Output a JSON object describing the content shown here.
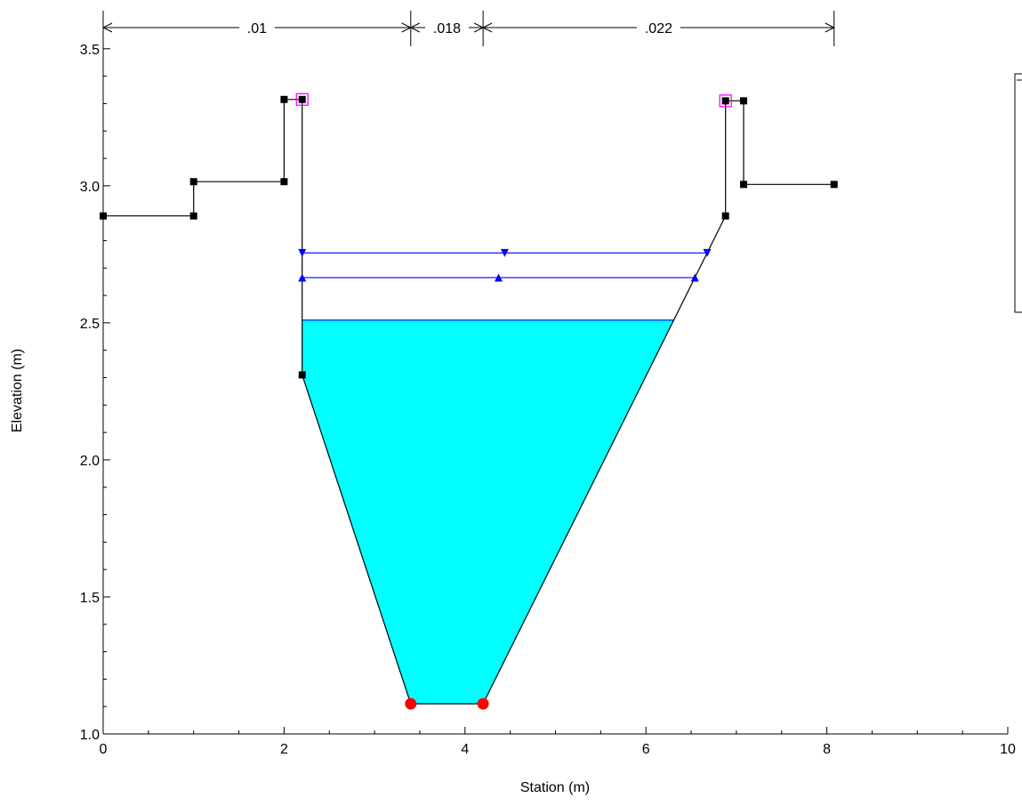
{
  "chart_data": {
    "type": "line",
    "title": "",
    "xlabel": "Station (m)",
    "ylabel": "Elevation (m)",
    "xlim": [
      0,
      10
    ],
    "ylim": [
      1.0,
      3.6
    ],
    "x_ticks": [
      0,
      2,
      4,
      6,
      8,
      10
    ],
    "x_tick_labels": [
      "0",
      "2",
      "4",
      "6",
      "8",
      "10"
    ],
    "y_ticks": [
      1.0,
      1.5,
      2.0,
      2.5,
      3.0,
      3.5
    ],
    "y_tick_labels": [
      "1.0",
      "1.5",
      "2.0",
      "2.5",
      "3.0",
      "3.5"
    ],
    "grid": false,
    "ground": {
      "x": [
        0,
        1.0,
        1.0,
        2.0,
        2.0,
        2.2,
        2.2,
        3.4,
        4.2,
        6.88,
        6.88,
        7.08,
        7.08,
        8.08
      ],
      "y": [
        2.89,
        2.89,
        3.015,
        3.015,
        3.315,
        3.315,
        2.31,
        1.11,
        1.11,
        2.89,
        3.31,
        3.31,
        3.005,
        3.005
      ],
      "color": "#000000"
    },
    "ground_points": [
      {
        "x": 0,
        "y": 2.89
      },
      {
        "x": 1.0,
        "y": 2.89
      },
      {
        "x": 1.0,
        "y": 3.015
      },
      {
        "x": 2.0,
        "y": 3.015
      },
      {
        "x": 2.0,
        "y": 3.315
      },
      {
        "x": 2.2,
        "y": 3.315
      },
      {
        "x": 2.2,
        "y": 2.31
      },
      {
        "x": 6.88,
        "y": 2.89
      },
      {
        "x": 6.88,
        "y": 3.31
      },
      {
        "x": 7.08,
        "y": 3.31
      },
      {
        "x": 7.08,
        "y": 3.005
      },
      {
        "x": 8.08,
        "y": 3.005
      }
    ],
    "bank_stations": [
      {
        "x": 2.2,
        "y": 3.315
      },
      {
        "x": 6.88,
        "y": 3.31
      }
    ],
    "channel_bottom_points": [
      {
        "x": 3.4,
        "y": 1.11
      },
      {
        "x": 4.2,
        "y": 1.11
      }
    ],
    "water_surface": {
      "elevation": 2.51,
      "fill_color": "#00ffff",
      "line_color": "#0000ff"
    },
    "lines": [
      {
        "elevation": 2.755,
        "marker": "triangle-down",
        "color": "#0000ff"
      },
      {
        "elevation": 2.665,
        "marker": "triangle-up",
        "color": "#0000ff"
      }
    ],
    "mannings_n": [
      {
        "label": ".01",
        "from": 0,
        "to": 3.4
      },
      {
        "label": ".018",
        "from": 3.4,
        "to": 4.2
      },
      {
        "label": ".022",
        "from": 4.2,
        "to": 8.08
      }
    ],
    "colors": {
      "ground": "#000000",
      "water": "#00ffff",
      "wsel": "#0000ff",
      "bank_marker": "#ff00ff",
      "bottom_marker": "#ff0000"
    }
  }
}
